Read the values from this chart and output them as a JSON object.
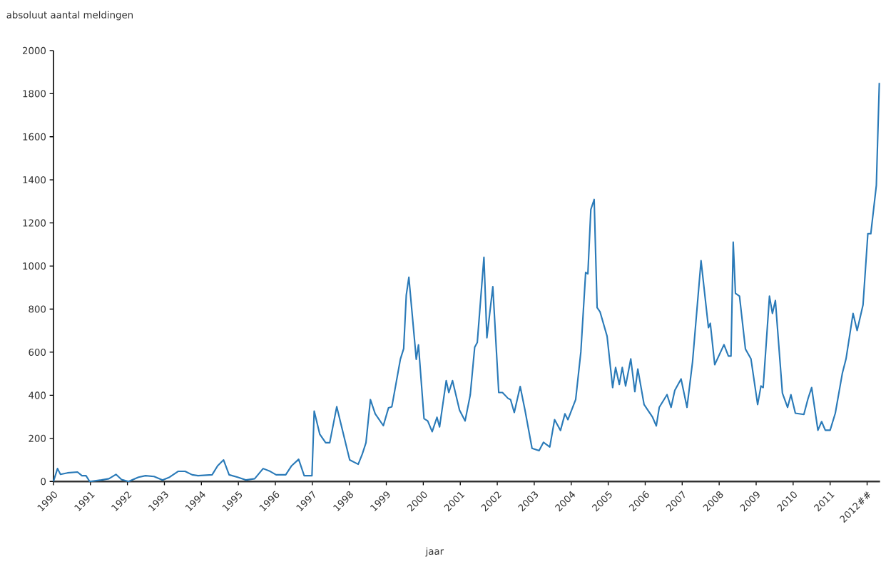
{
  "chart_data": {
    "type": "line",
    "xlabel": "jaar",
    "ylabel": "absoluut aantal meldingen",
    "color": "#2a7ab8",
    "x": [
      1990.0,
      1990.11,
      1990.19,
      1990.38,
      1990.65,
      1990.77,
      1990.88,
      1990.98,
      1991.3,
      1991.5,
      1991.69,
      1991.84,
      1992.03,
      1992.3,
      1992.49,
      1992.72,
      1992.95,
      1993.14,
      1993.37,
      1993.56,
      1993.75,
      1993.91,
      1994.29,
      1994.44,
      1994.6,
      1994.75,
      1994.98,
      1995.21,
      1995.44,
      1995.67,
      1995.86,
      1996.02,
      1996.28,
      1996.44,
      1996.63,
      1996.78,
      1996.99,
      1997.05,
      1997.2,
      1997.36,
      1997.47,
      1997.66,
      1998.01,
      1998.24,
      1998.35,
      1998.45,
      1998.57,
      1998.7,
      1998.92,
      1999.06,
      1999.15,
      1999.38,
      1999.47,
      1999.54,
      1999.61,
      1999.81,
      1999.87,
      2000.02,
      2000.12,
      2000.24,
      2000.37,
      2000.44,
      2000.62,
      2000.69,
      2000.79,
      2000.98,
      2001.13,
      2001.27,
      2001.39,
      2001.46,
      2001.64,
      2001.72,
      2001.88,
      2002.04,
      2002.14,
      2002.29,
      2002.36,
      2002.46,
      2002.62,
      2002.75,
      2002.94,
      2003.13,
      2003.25,
      2003.42,
      2003.55,
      2003.71,
      2003.83,
      2003.91,
      2004.12,
      2004.26,
      2004.39,
      2004.45,
      2004.53,
      2004.62,
      2004.7,
      2004.78,
      2004.97,
      2005.12,
      2005.2,
      2005.3,
      2005.38,
      2005.47,
      2005.61,
      2005.72,
      2005.8,
      2005.97,
      2006.2,
      2006.3,
      2006.38,
      2006.59,
      2006.7,
      2006.8,
      2006.97,
      2007.13,
      2007.28,
      2007.51,
      2007.71,
      2007.76,
      2007.88,
      2008.13,
      2008.25,
      2008.32,
      2008.38,
      2008.44,
      2008.55,
      2008.71,
      2008.86,
      2009.04,
      2009.13,
      2009.19,
      2009.36,
      2009.44,
      2009.52,
      2009.71,
      2009.85,
      2009.94,
      2010.06,
      2010.29,
      2010.4,
      2010.5,
      2010.67,
      2010.77,
      2010.87,
      2011.0,
      2011.14,
      2011.33,
      2011.43,
      2011.62,
      2011.73,
      2011.89,
      2012.02,
      2012.1,
      2012.25,
      2012.33
    ],
    "values": [
      0,
      60,
      33,
      40,
      44,
      27,
      27,
      0,
      7,
      13,
      33,
      9,
      0,
      20,
      27,
      23,
      7,
      20,
      47,
      47,
      31,
      27,
      31,
      73,
      100,
      31,
      20,
      7,
      13,
      60,
      47,
      31,
      31,
      73,
      103,
      27,
      27,
      327,
      220,
      180,
      180,
      347,
      100,
      80,
      127,
      180,
      380,
      314,
      259,
      342,
      347,
      567,
      617,
      865,
      948,
      567,
      634,
      292,
      281,
      231,
      298,
      253,
      468,
      413,
      468,
      331,
      281,
      402,
      623,
      645,
      1041,
      667,
      904,
      413,
      413,
      386,
      380,
      320,
      441,
      331,
      154,
      143,
      182,
      160,
      287,
      237,
      314,
      287,
      380,
      601,
      970,
      964,
      1262,
      1309,
      807,
      787,
      674,
      436,
      529,
      450,
      529,
      443,
      569,
      417,
      522,
      357,
      298,
      258,
      344,
      403,
      344,
      423,
      476,
      344,
      555,
      1025,
      714,
      734,
      542,
      635,
      582,
      582,
      1111,
      873,
      860,
      615,
      569,
      357,
      443,
      436,
      860,
      780,
      840,
      410,
      344,
      403,
      317,
      311,
      383,
      436,
      238,
      278,
      238,
      238,
      317,
      502,
      569,
      780,
      701,
      820,
      1150,
      1150,
      1375,
      1850
    ],
    "xlim": [
      1990,
      2012.35
    ],
    "ylim": [
      0,
      2000
    ],
    "xticks": [
      1990,
      1991,
      1992,
      1993,
      1994,
      1995,
      1996,
      1997,
      1998,
      1999,
      2000,
      2001,
      2002,
      2003,
      2004,
      2005,
      2006,
      2007,
      2008,
      2009,
      2010,
      2011,
      {
        "value": 2012,
        "label": "2012##"
      }
    ],
    "yticks": [
      0,
      200,
      400,
      600,
      800,
      1000,
      1200,
      1400,
      1600,
      1800,
      2000
    ]
  }
}
